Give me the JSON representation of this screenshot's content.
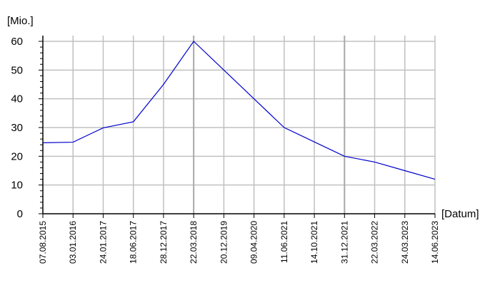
{
  "chart_data": {
    "type": "line",
    "title": "",
    "ylabel": "[Mio.]",
    "xlabel": "[Datum]",
    "ylim": [
      0,
      60
    ],
    "yticks": [
      "0",
      "10",
      "20",
      "30",
      "40",
      "50",
      "60"
    ],
    "grid": true,
    "categories": [
      "07.08.2015",
      "03.01.2016",
      "24.01.2017",
      "18.06.2017",
      "28.12.2017",
      "22.03.2018",
      "20.12.2019",
      "09.04.2020",
      "11.06.2021",
      "14.10.2021",
      "31.12.2021",
      "22.03.2022",
      "24.03.2023",
      "14.06.2023"
    ],
    "values": [
      24.7,
      24.9,
      29.9,
      32.0,
      45.0,
      60.0,
      50.0,
      40.0,
      30.0,
      25.0,
      20.0,
      18.0,
      15.0,
      12.0
    ],
    "series_color": "#0000cc",
    "grid_color": "#c0c0c0",
    "major_grid_color": "#a8a8a8"
  }
}
